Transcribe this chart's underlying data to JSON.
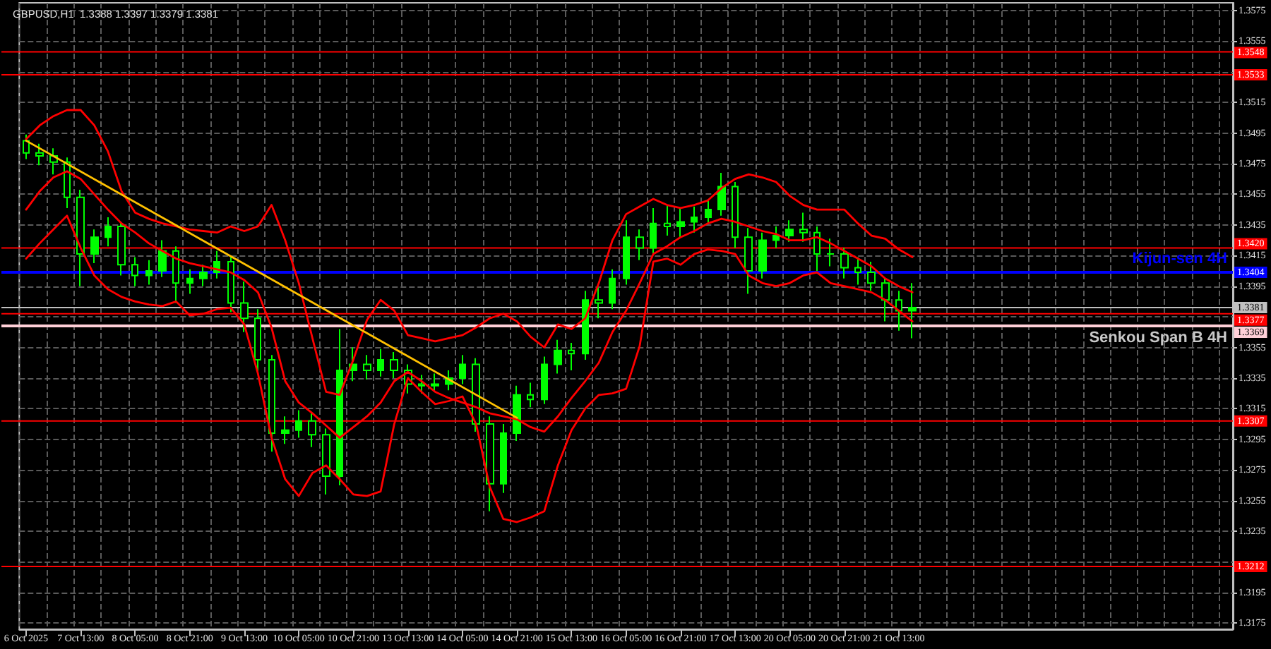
{
  "chart_data": {
    "type": "candlestick",
    "title": "GBPUSD,H1  1.3388 1.3397 1.3379 1.3381",
    "categories": [
      "6 Oct 2025",
      null,
      null,
      null,
      "7 Oct 13:00",
      null,
      null,
      null,
      "8 Oct 05:00",
      null,
      null,
      null,
      "8 Oct 21:00",
      null,
      null,
      null,
      "9 Oct 13:00",
      null,
      null,
      null,
      "10 Oct 05:00",
      null,
      null,
      null,
      "10 Oct 21:00",
      null,
      null,
      null,
      "13 Oct 13:00",
      null,
      null,
      null,
      "14 Oct 05:00",
      null,
      null,
      null,
      "14 Oct 21:00",
      null,
      null,
      null,
      "15 Oct 13:00",
      null,
      null,
      null,
      "16 Oct 05:00",
      null,
      null,
      null,
      "16 Oct 21:00",
      null,
      null,
      null,
      "17 Oct 13:00",
      null,
      null,
      null,
      "20 Oct 05:00",
      null,
      null,
      null,
      "20 Oct 21:00",
      null,
      null,
      null,
      "21 Oct 13:00",
      null,
      null,
      null,
      null,
      null,
      null,
      null,
      null,
      null,
      null,
      null,
      null,
      null,
      null,
      null,
      null,
      null,
      null,
      null,
      null,
      null,
      null,
      null,
      null
    ],
    "series": [
      {
        "type": "line",
        "color": "#ff0000",
        "values": [
          1.3491,
          1.35,
          1.3506,
          1.351,
          1.351,
          1.35,
          1.3483,
          1.3457,
          1.3443,
          1.3439,
          1.3436,
          1.3434,
          1.3432,
          1.3431,
          1.343,
          1.3434,
          1.3431,
          1.3434,
          1.3448,
          1.3425,
          1.3397,
          1.3361,
          1.3326,
          1.3324,
          1.3347,
          1.3373,
          1.3386,
          1.3379,
          1.3363,
          1.3361,
          1.3359,
          1.3361,
          1.3363,
          1.3368,
          1.3374,
          1.3377,
          1.3372,
          1.3362,
          1.3355,
          1.337,
          1.3367,
          1.3374,
          1.3397,
          1.3425,
          1.3442,
          1.3447,
          1.3452,
          1.3448,
          1.3446,
          1.3448,
          1.3451,
          1.3459,
          1.3465,
          1.3468,
          1.3466,
          1.3463,
          1.3454,
          1.3448,
          1.3445,
          1.3445,
          1.3445,
          1.3436,
          1.3428,
          1.3426,
          1.3419,
          1.3414,
          null,
          null,
          null,
          null,
          null,
          null,
          null,
          null,
          null,
          null,
          null,
          null,
          null,
          null,
          null,
          null,
          null,
          null,
          null,
          null,
          null,
          null,
          null
        ]
      },
      {
        "type": "line",
        "color": "#ff0000",
        "values": [
          1.3445,
          1.3457,
          1.3466,
          1.347,
          1.3465,
          1.3455,
          1.3445,
          1.3436,
          1.343,
          1.3423,
          1.3418,
          1.3413,
          1.341,
          1.3408,
          1.3406,
          1.3404,
          1.3399,
          1.3391,
          1.3368,
          1.3333,
          1.3319,
          1.3312,
          1.3304,
          1.3296,
          1.3303,
          1.331,
          1.3319,
          1.3333,
          1.3339,
          1.3333,
          1.3326,
          1.3322,
          1.3319,
          1.3316,
          1.3312,
          1.331,
          1.3308,
          1.3303,
          1.33,
          1.331,
          1.3322,
          1.3333,
          1.3345,
          1.3365,
          1.3379,
          1.3397,
          1.3416,
          1.3421,
          1.3427,
          1.3431,
          1.3436,
          1.3439,
          1.3437,
          1.3434,
          1.3431,
          1.3429,
          1.3425,
          1.3425,
          1.3427,
          1.3423,
          1.3418,
          1.3413,
          1.3408,
          1.34,
          1.3395,
          1.3391,
          null,
          null,
          null,
          null,
          null,
          null,
          null,
          null,
          null,
          null,
          null,
          null,
          null,
          null,
          null,
          null,
          null,
          null,
          null,
          null,
          null,
          null,
          null
        ]
      },
      {
        "type": "line",
        "color": "#ff0000",
        "values": [
          1.3413,
          1.3423,
          1.3432,
          1.3441,
          1.342,
          1.3402,
          1.3393,
          1.3388,
          1.3385,
          1.3383,
          1.3382,
          1.3385,
          1.3376,
          1.3377,
          1.338,
          1.3381,
          1.337,
          1.3338,
          1.3296,
          1.3269,
          1.3258,
          1.3273,
          1.3278,
          1.3269,
          1.3259,
          1.3258,
          1.3261,
          1.3305,
          1.3335,
          1.3326,
          1.3318,
          1.332,
          1.3323,
          1.3305,
          1.3264,
          1.3243,
          1.3241,
          1.3244,
          1.3248,
          1.3278,
          1.3301,
          1.3315,
          1.3324,
          1.3325,
          1.3328,
          1.3356,
          1.3411,
          1.3413,
          1.3409,
          1.3416,
          1.3419,
          1.3418,
          1.3416,
          1.3402,
          1.3397,
          1.3395,
          1.3397,
          1.3402,
          1.3404,
          1.3397,
          1.3395,
          1.3393,
          1.3391,
          1.3386,
          1.3379,
          1.3372,
          null,
          null,
          null,
          null,
          null,
          null,
          null,
          null,
          null,
          null,
          null,
          null,
          null,
          null,
          null,
          null,
          null,
          null,
          null,
          null,
          null,
          null,
          null
        ]
      },
      {
        "type": "line",
        "color": "#ffc000",
        "x": [
          "6 Oct 2025",
          "14 Oct 21:00"
        ],
        "values": [
          1.349,
          1.3309
        ]
      },
      {
        "type": "candlestick",
        "color": "#00ff00",
        "ohlc": [
          [
            1.349,
            1.3494,
            1.3478,
            1.3482
          ],
          [
            1.3482,
            1.3488,
            1.3474,
            1.348
          ],
          [
            1.348,
            1.3485,
            1.3468,
            1.3476
          ],
          [
            1.3476,
            1.3479,
            1.3446,
            1.3453
          ],
          [
            1.3453,
            1.3458,
            1.3395,
            1.3416
          ],
          [
            1.3416,
            1.3432,
            1.341,
            1.3427
          ],
          [
            1.3427,
            1.344,
            1.3421,
            1.3434
          ],
          [
            1.3434,
            1.3437,
            1.3402,
            1.3409
          ],
          [
            1.3409,
            1.3414,
            1.3395,
            1.3402
          ],
          [
            1.3402,
            1.3412,
            1.3396,
            1.3405
          ],
          [
            1.3405,
            1.3425,
            1.3401,
            1.3418
          ],
          [
            1.3418,
            1.3421,
            1.3384,
            1.3397
          ],
          [
            1.3397,
            1.3406,
            1.339,
            1.34
          ],
          [
            1.34,
            1.3409,
            1.3395,
            1.3404
          ],
          [
            1.3404,
            1.3418,
            1.34,
            1.3411
          ],
          [
            1.3411,
            1.3414,
            1.3378,
            1.3384
          ],
          [
            1.3384,
            1.3398,
            1.3365,
            1.3374
          ],
          [
            1.3374,
            1.338,
            1.3338,
            1.3347
          ],
          [
            1.3347,
            1.335,
            1.3287,
            1.3299
          ],
          [
            1.3299,
            1.331,
            1.3292,
            1.3301
          ],
          [
            1.3301,
            1.3314,
            1.3296,
            1.3307
          ],
          [
            1.3307,
            1.3312,
            1.329,
            1.3298
          ],
          [
            1.3298,
            1.3302,
            1.3259,
            1.3271
          ],
          [
            1.3271,
            1.3367,
            1.3265,
            1.334
          ],
          [
            1.334,
            1.3355,
            1.3333,
            1.3344
          ],
          [
            1.3344,
            1.335,
            1.3334,
            1.334
          ],
          [
            1.334,
            1.3354,
            1.3336,
            1.3347
          ],
          [
            1.3347,
            1.3352,
            1.3335,
            1.334
          ],
          [
            1.334,
            1.3344,
            1.3325,
            1.3331
          ],
          [
            1.3331,
            1.3337,
            1.3325,
            1.333
          ],
          [
            1.333,
            1.3338,
            1.3326,
            1.3331
          ],
          [
            1.3331,
            1.334,
            1.3327,
            1.3335
          ],
          [
            1.3335,
            1.335,
            1.3331,
            1.3344
          ],
          [
            1.3344,
            1.3348,
            1.33,
            1.3305
          ],
          [
            1.3305,
            1.331,
            1.3248,
            1.3266
          ],
          [
            1.3266,
            1.3305,
            1.326,
            1.3299
          ],
          [
            1.3299,
            1.333,
            1.3294,
            1.3324
          ],
          [
            1.3324,
            1.3332,
            1.3316,
            1.3321
          ],
          [
            1.3321,
            1.3349,
            1.3318,
            1.3344
          ],
          [
            1.3344,
            1.336,
            1.3338,
            1.3353
          ],
          [
            1.3353,
            1.3358,
            1.334,
            1.3351
          ],
          [
            1.3351,
            1.3392,
            1.3347,
            1.3386
          ],
          [
            1.3386,
            1.3394,
            1.3374,
            1.3384
          ],
          [
            1.3384,
            1.3406,
            1.338,
            1.34
          ],
          [
            1.34,
            1.3438,
            1.3396,
            1.3427
          ],
          [
            1.3427,
            1.3432,
            1.3412,
            1.342
          ],
          [
            1.342,
            1.3446,
            1.3416,
            1.3436
          ],
          [
            1.3436,
            1.3448,
            1.3428,
            1.3434
          ],
          [
            1.3434,
            1.3446,
            1.3427,
            1.3437
          ],
          [
            1.3437,
            1.3447,
            1.343,
            1.344
          ],
          [
            1.344,
            1.3452,
            1.3436,
            1.3445
          ],
          [
            1.3445,
            1.3469,
            1.3441,
            1.346
          ],
          [
            1.346,
            1.3463,
            1.342,
            1.3427
          ],
          [
            1.3427,
            1.3433,
            1.339,
            1.3405
          ],
          [
            1.3405,
            1.343,
            1.34,
            1.3425
          ],
          [
            1.3425,
            1.3434,
            1.342,
            1.3428
          ],
          [
            1.3428,
            1.3438,
            1.3424,
            1.3432
          ],
          [
            1.3432,
            1.3443,
            1.3424,
            1.343
          ],
          [
            1.343,
            1.3434,
            1.3405,
            1.3416
          ],
          [
            1.3416,
            1.3426,
            1.3408,
            1.3416
          ],
          [
            1.3416,
            1.342,
            1.34,
            1.3407
          ],
          [
            1.3407,
            1.3414,
            1.3396,
            1.3404
          ],
          [
            1.3404,
            1.3411,
            1.3392,
            1.3397
          ],
          [
            1.3397,
            1.34,
            1.3372,
            1.3386
          ],
          [
            1.3386,
            1.3392,
            1.3366,
            1.3379
          ],
          [
            1.3379,
            1.3397,
            1.3361,
            1.3381
          ],
          null,
          null,
          null,
          null,
          null,
          null,
          null,
          null,
          null,
          null,
          null,
          null,
          null,
          null,
          null,
          null,
          null,
          null,
          null,
          null,
          null,
          null,
          null
        ]
      }
    ],
    "ylim": [
      1.3171,
      1.358
    ],
    "yticks": [
      1.3175,
      1.3195,
      {
        "value": 1.3215,
        "label": null
      },
      1.3235,
      1.3255,
      1.3275,
      1.3295,
      1.3315,
      1.3335,
      1.3355,
      {
        "value": 1.3375,
        "label": null
      },
      1.3395,
      1.3415,
      1.3435,
      1.3455,
      1.3475,
      1.3495,
      1.3515,
      {
        "value": 1.3535,
        "label": null
      },
      1.3555,
      1.3575
    ],
    "ref_lines": [
      {
        "axis": "y",
        "value": 1.3548,
        "label": "1.3548",
        "color": "#ff0000"
      },
      {
        "axis": "y",
        "value": 1.3533,
        "label": "1.3533",
        "color": "#ff0000"
      },
      {
        "axis": "y",
        "value": 1.342,
        "label": "1.3420",
        "color": "#ff0000"
      },
      {
        "axis": "y",
        "value": 1.3404,
        "label": "1.3404",
        "color": "#0000ff"
      },
      {
        "axis": "y",
        "value": 1.3381,
        "label": "1.3381",
        "color": "#c0c0c0"
      },
      {
        "axis": "y",
        "value": 1.3377,
        "label": "1.3377",
        "color": "#ff0000"
      },
      {
        "axis": "y",
        "value": 1.3369,
        "label": "1.3369",
        "color": "#ffd0d8"
      },
      {
        "axis": "y",
        "value": 1.3307,
        "label": "1.3307",
        "color": "#ff0000"
      },
      {
        "axis": "y",
        "value": 1.3212,
        "label": "1.3212",
        "color": "#ff0000"
      }
    ],
    "annotations": [
      {
        "text": "Kijun-sen 4H",
        "y": 1.3404
      },
      {
        "text": "Senkou Span B 4H",
        "y": 1.3369
      }
    ],
    "grid": true,
    "marker": "none"
  }
}
